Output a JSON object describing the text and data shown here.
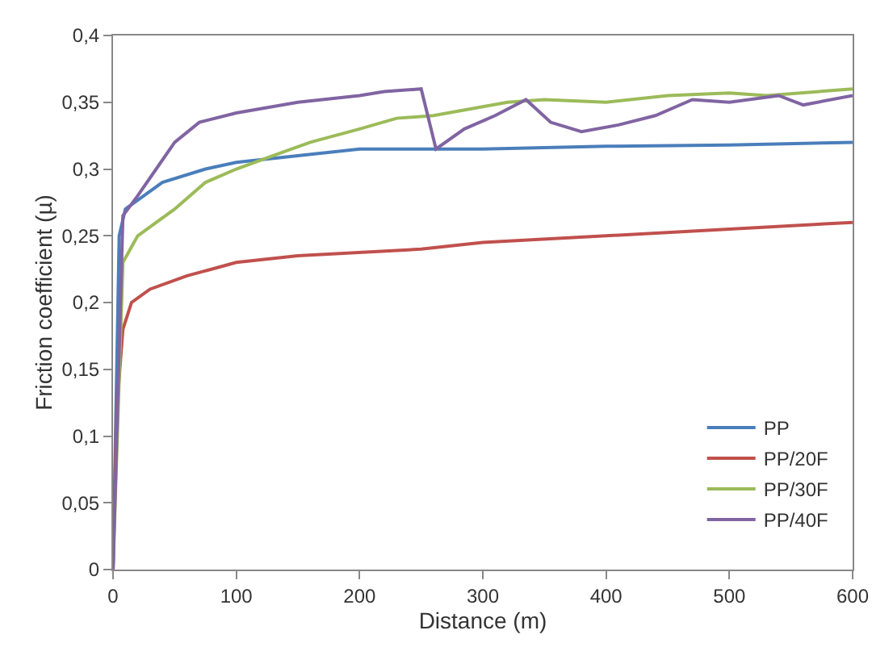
{
  "chart_data": {
    "type": "line",
    "xlabel": "Distance (m)",
    "ylabel": "Friction coefficient (µ)",
    "xlim": [
      0,
      600
    ],
    "xticks": [
      0,
      100,
      200,
      300,
      400,
      500,
      600
    ],
    "ylim": [
      0,
      0.4
    ],
    "yticks": [
      {
        "value": 0,
        "label": "0"
      },
      {
        "value": 0.05,
        "label": "0,05"
      },
      {
        "value": 0.1,
        "label": "0,1"
      },
      {
        "value": 0.15,
        "label": "0,15"
      },
      {
        "value": 0.2,
        "label": "0,2"
      },
      {
        "value": 0.25,
        "label": "0,25"
      },
      {
        "value": 0.3,
        "label": "0,3"
      },
      {
        "value": 0.35,
        "label": "0,35"
      },
      {
        "value": 0.4,
        "label": "0,4"
      }
    ],
    "grid": false,
    "legend": "bottom right",
    "marker": "none",
    "line_style": "solid",
    "series": [
      {
        "name": "PP",
        "color": "#4a7ebb",
        "x": [
          0,
          5,
          10,
          25,
          40,
          75,
          100,
          150,
          200,
          300,
          400,
          500,
          600
        ],
        "values": [
          0,
          0.25,
          0.27,
          0.28,
          0.29,
          0.3,
          0.305,
          0.31,
          0.315,
          0.315,
          0.317,
          0.318,
          0.32
        ]
      },
      {
        "name": "PP/20F",
        "color": "#c0504d",
        "x": [
          0,
          3,
          8,
          15,
          30,
          60,
          100,
          150,
          250,
          300,
          400,
          500,
          600
        ],
        "values": [
          0,
          0.12,
          0.18,
          0.2,
          0.21,
          0.22,
          0.23,
          0.235,
          0.24,
          0.245,
          0.25,
          0.255,
          0.26
        ]
      },
      {
        "name": "PP/30F",
        "color": "#9bbb59",
        "x": [
          0,
          8,
          20,
          50,
          75,
          100,
          130,
          160,
          200,
          230,
          260,
          290,
          320,
          350,
          400,
          450,
          500,
          530,
          600
        ],
        "values": [
          0,
          0.23,
          0.25,
          0.27,
          0.29,
          0.3,
          0.31,
          0.32,
          0.33,
          0.338,
          0.34,
          0.345,
          0.35,
          0.352,
          0.35,
          0.355,
          0.357,
          0.355,
          0.36
        ]
      },
      {
        "name": "PP/40F",
        "color": "#8064a2",
        "x": [
          0,
          8,
          20,
          35,
          50,
          70,
          100,
          150,
          200,
          220,
          250,
          262,
          285,
          310,
          335,
          355,
          380,
          410,
          440,
          470,
          500,
          540,
          560,
          600
        ],
        "values": [
          0,
          0.265,
          0.28,
          0.3,
          0.32,
          0.335,
          0.342,
          0.35,
          0.355,
          0.358,
          0.36,
          0.315,
          0.33,
          0.34,
          0.352,
          0.335,
          0.328,
          0.333,
          0.34,
          0.352,
          0.35,
          0.355,
          0.348,
          0.355
        ]
      }
    ]
  }
}
